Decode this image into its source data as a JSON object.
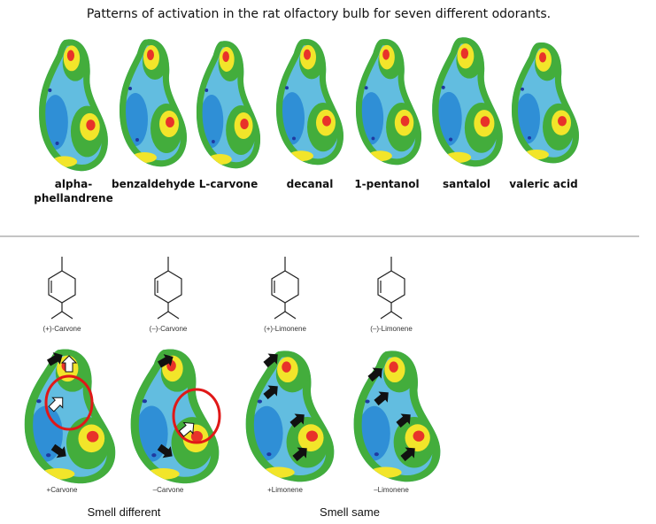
{
  "title": "Patterns of activation in the rat olfactory bulb for seven different odorants.",
  "odorants": [
    "alpha-phellandrene",
    "benzaldehyde",
    "L-carvone",
    "decanal",
    "1-pentanol",
    "santalol",
    "valeric acid"
  ],
  "enantiomers": {
    "structures": [
      "(+)-Carvone",
      "(–)-Carvone",
      "(+)-Limonene",
      "(–)-Limonene"
    ],
    "maps": [
      "+Carvone",
      "–Carvone",
      "+Limonene",
      "–Limonene"
    ],
    "groups": [
      "Smell different",
      "Smell same"
    ]
  }
}
